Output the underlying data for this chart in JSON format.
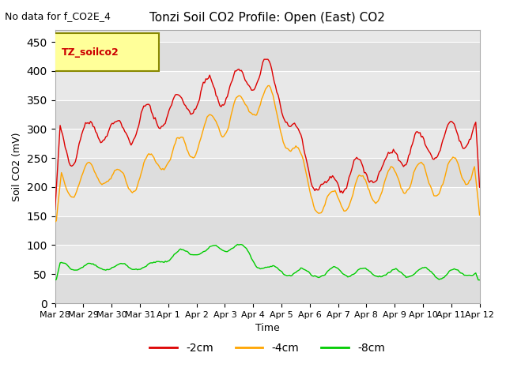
{
  "title": "Tonzi Soil CO2 Profile: Open (East) CO2",
  "subtitle": "No data for f_CO2E_4",
  "xlabel": "Time",
  "ylabel": "Soil CO2 (mV)",
  "ylim": [
    0,
    470
  ],
  "yticks": [
    0,
    50,
    100,
    150,
    200,
    250,
    300,
    350,
    400,
    450
  ],
  "legend_label": "TZ_soilco2",
  "line_labels": [
    "-2cm",
    "-4cm",
    "-8cm"
  ],
  "line_colors": [
    "#dd0000",
    "#ffa500",
    "#00cc00"
  ],
  "background_color": "#ffffff",
  "plot_bg_color": "#e8e8e8",
  "band_color": "#d4d4d4",
  "x_tick_labels": [
    "Mar 28",
    "Mar 29",
    "Mar 30",
    "Mar 31",
    "Apr 1",
    "Apr 2",
    "Apr 3",
    "Apr 4",
    "Apr 5",
    "Apr 6",
    "Apr 7",
    "Apr 8",
    "Apr 9",
    "Apr 10",
    "Apr 11",
    "Apr 12"
  ],
  "num_points": 336,
  "seed": 42
}
